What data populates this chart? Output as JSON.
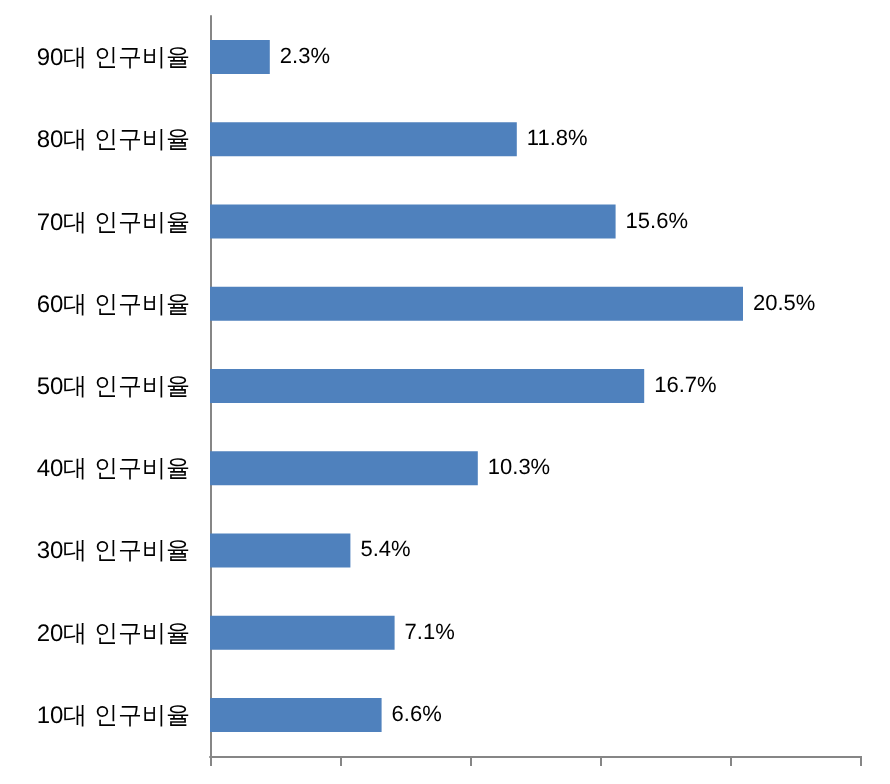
{
  "chart_data": {
    "type": "bar",
    "orientation": "horizontal",
    "categories": [
      "90대 인구비율",
      "80대 인구비율",
      "70대 인구비율",
      "60대 인구비율",
      "50대 인구비율",
      "40대 인구비율",
      "30대 인구비율",
      "20대 인구비율",
      "10대 인구비율"
    ],
    "values": [
      2.3,
      11.8,
      15.6,
      20.5,
      16.7,
      10.3,
      5.4,
      7.1,
      6.6
    ],
    "value_labels": [
      "2.3%",
      "11.8%",
      "15.6%",
      "20.5%",
      "16.7%",
      "10.3%",
      "5.4%",
      "7.1%",
      "6.6%"
    ],
    "color": "#4f81bd",
    "xlim": [
      0,
      25
    ],
    "xticks": [
      {
        "value": 0,
        "label": null
      },
      {
        "value": 5,
        "label": null
      },
      {
        "value": 10,
        "label": null
      },
      {
        "value": 15,
        "label": null
      },
      {
        "value": 20,
        "label": null
      },
      {
        "value": 25,
        "label": null
      }
    ],
    "tick_labels": "y"
  }
}
